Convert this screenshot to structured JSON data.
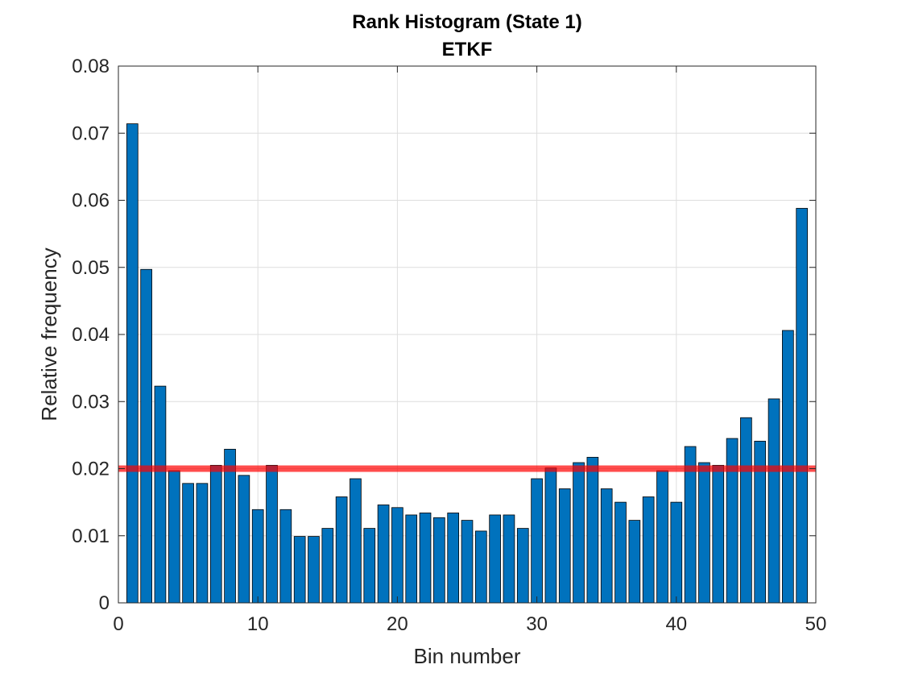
{
  "chart_data": {
    "type": "bar",
    "title": "Rank Histogram (State 1)",
    "subtitle": "ETKF",
    "xlabel": "Bin number",
    "ylabel": "Relative frequency",
    "xlim": [
      0,
      50
    ],
    "ylim": [
      0,
      0.08
    ],
    "xticks": [
      0,
      10,
      20,
      30,
      40,
      50
    ],
    "xtick_labels": [
      "0",
      "10",
      "20",
      "30",
      "40",
      "50"
    ],
    "yticks": [
      0,
      0.01,
      0.02,
      0.03,
      0.04,
      0.05,
      0.06,
      0.07,
      0.08
    ],
    "ytick_labels": [
      "0",
      "0.01",
      "0.02",
      "0.03",
      "0.04",
      "0.05",
      "0.06",
      "0.07",
      "0.08"
    ],
    "grid": true,
    "bar_color": "#0072BD",
    "bar_edge_color": "#000000",
    "reference_line": {
      "value": 0.02,
      "color": "#FF0000"
    },
    "x": [
      1,
      2,
      3,
      4,
      5,
      6,
      7,
      8,
      9,
      10,
      11,
      12,
      13,
      14,
      15,
      16,
      17,
      18,
      19,
      20,
      21,
      22,
      23,
      24,
      25,
      26,
      27,
      28,
      29,
      30,
      31,
      32,
      33,
      34,
      35,
      36,
      37,
      38,
      39,
      40,
      41,
      42,
      43,
      44,
      45,
      46,
      47,
      48,
      49
    ],
    "values": [
      0.0714,
      0.0497,
      0.0323,
      0.0197,
      0.0178,
      0.0178,
      0.0205,
      0.0229,
      0.019,
      0.0139,
      0.0205,
      0.0139,
      0.0099,
      0.0099,
      0.0111,
      0.0158,
      0.0185,
      0.0111,
      0.0146,
      0.0142,
      0.0131,
      0.0134,
      0.0127,
      0.0134,
      0.0123,
      0.0107,
      0.0131,
      0.0131,
      0.0111,
      0.0185,
      0.0201,
      0.017,
      0.0209,
      0.0217,
      0.017,
      0.015,
      0.0123,
      0.0158,
      0.0197,
      0.015,
      0.0233,
      0.0209,
      0.0205,
      0.0245,
      0.0276,
      0.0241,
      0.0304,
      0.0406,
      0.0588
    ]
  }
}
